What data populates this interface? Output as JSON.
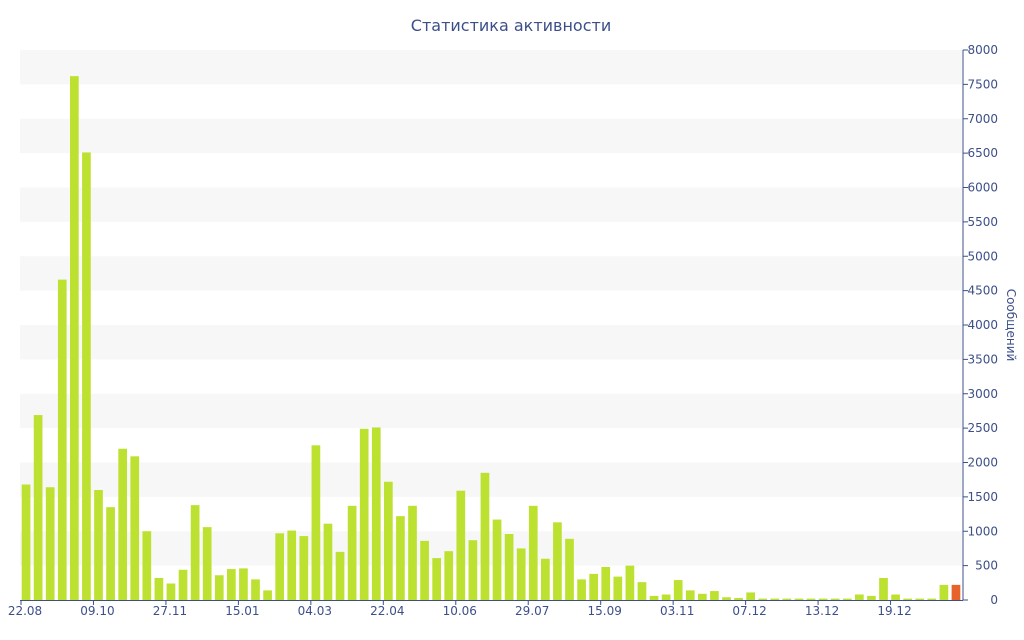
{
  "chart_data": {
    "type": "bar",
    "title": "Статистика активности",
    "xlabel": "",
    "ylabel": "Сообщений",
    "ylim": [
      0,
      8000
    ],
    "y_ticks": [
      0,
      500,
      1000,
      1500,
      2000,
      2500,
      3000,
      3500,
      4000,
      4500,
      5000,
      5500,
      6000,
      6500,
      7000,
      7500,
      8000
    ],
    "x_tick_labels": [
      {
        "index": 0,
        "label": "22.08"
      },
      {
        "index": 6,
        "label": "09.10"
      },
      {
        "index": 12,
        "label": "27.11"
      },
      {
        "index": 18,
        "label": "15.01"
      },
      {
        "index": 24,
        "label": "04.03"
      },
      {
        "index": 30,
        "label": "22.04"
      },
      {
        "index": 36,
        "label": "10.06"
      },
      {
        "index": 42,
        "label": "29.07"
      },
      {
        "index": 48,
        "label": "15.09"
      },
      {
        "index": 54,
        "label": "03.11"
      },
      {
        "index": 60,
        "label": "07.12"
      },
      {
        "index": 66,
        "label": "13.12"
      },
      {
        "index": 72,
        "label": "19.12"
      }
    ],
    "y_axis_position": "right",
    "grid": "horizontal alternating bands",
    "colors": {
      "bar": "#bde131",
      "highlight": "#e8632c",
      "text": "#3d4f8a",
      "band": "#f7f7f7"
    },
    "highlight_index": 77,
    "values": [
      1680,
      2690,
      1640,
      4660,
      7620,
      6510,
      1600,
      1350,
      2200,
      2090,
      1000,
      320,
      240,
      440,
      1380,
      1060,
      360,
      450,
      460,
      300,
      140,
      970,
      1010,
      930,
      2250,
      1110,
      700,
      1370,
      2490,
      2510,
      1720,
      1220,
      1370,
      860,
      610,
      710,
      1590,
      870,
      1850,
      1170,
      960,
      750,
      1370,
      600,
      1130,
      890,
      300,
      380,
      480,
      340,
      500,
      260,
      60,
      80,
      290,
      140,
      90,
      130,
      40,
      30,
      110,
      20,
      20,
      20,
      20,
      20,
      20,
      20,
      20,
      80,
      60,
      320,
      80,
      20,
      20,
      20,
      220,
      220
    ]
  }
}
